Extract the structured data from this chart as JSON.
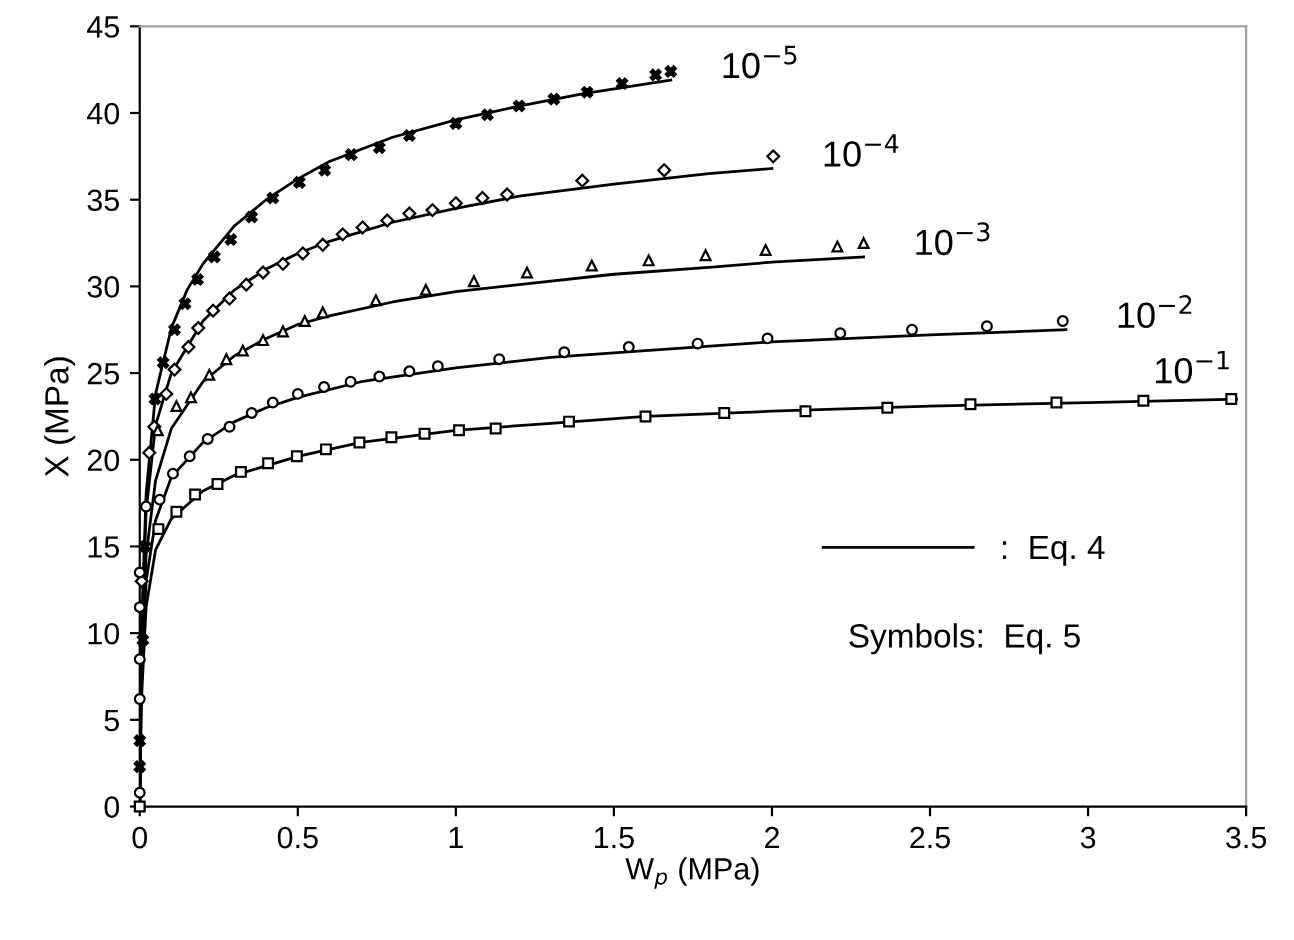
{
  "chart_data": {
    "type": "line",
    "xlabel": "W$_{p}$ (MPa)",
    "ylabel": "X (MPa)",
    "xlim": [
      0,
      3.5
    ],
    "xticks": [
      0,
      0.5,
      1,
      1.5,
      2,
      2.5,
      3,
      3.5
    ],
    "ylim": [
      0,
      45
    ],
    "yticks": [
      0,
      5,
      10,
      15,
      20,
      25,
      30,
      35,
      40,
      45
    ],
    "grid": false,
    "legend": "lower right",
    "annotations": [
      {
        "text": "10$^{−5}$",
        "x": 1.68,
        "y": 41.9
      },
      {
        "text": "10$^{−4}$",
        "x": 2.0,
        "y": 36.8
      },
      {
        "text": "10$^{−3}$",
        "x": 2.29,
        "y": 31.7
      },
      {
        "text": "10$^{−2}$",
        "x": 2.93,
        "y": 27.5
      },
      {
        "text": "10$^{−1}$",
        "x": 3.47,
        "y": 23.5
      },
      "Symbols:  Eq. 5"
    ],
    "series": [
      {
        "type": "line",
        "name": ":  Eq. 4",
        "color": "#000000",
        "marker": "none",
        "line_style": "solid",
        "x": [
          0,
          0.005,
          0.02,
          0.05,
          0.1,
          0.15,
          0.2,
          0.3,
          0.4,
          0.5,
          0.6,
          0.8,
          1.0,
          1.2,
          1.4,
          1.68
        ],
        "values": [
          0,
          10,
          18,
          23.8,
          27.6,
          29.8,
          31.3,
          33.5,
          35,
          36.2,
          37.2,
          38.6,
          39.6,
          40.4,
          41.1,
          41.9
        ]
      },
      {
        "type": "line",
        "color": "#000000",
        "marker": "none",
        "line_style": "solid",
        "x": [
          0,
          0.005,
          0.02,
          0.05,
          0.1,
          0.2,
          0.3,
          0.4,
          0.5,
          0.6,
          0.8,
          1.0,
          1.2,
          1.5,
          1.8,
          2.0
        ],
        "values": [
          0,
          9,
          17,
          22,
          25,
          28,
          29.8,
          31,
          31.9,
          32.6,
          33.7,
          34.5,
          35.2,
          35.9,
          36.5,
          36.8
        ]
      },
      {
        "type": "line",
        "color": "#000000",
        "marker": "none",
        "line_style": "solid",
        "x": [
          0,
          0.005,
          0.02,
          0.05,
          0.1,
          0.2,
          0.3,
          0.4,
          0.5,
          0.6,
          0.8,
          1.0,
          1.2,
          1.5,
          1.8,
          2.0,
          2.29
        ],
        "values": [
          0,
          8,
          14.5,
          18.8,
          21.8,
          24.5,
          26,
          27,
          27.8,
          28.3,
          29.1,
          29.7,
          30.1,
          30.7,
          31.1,
          31.4,
          31.7
        ]
      },
      {
        "type": "line",
        "color": "#000000",
        "marker": "none",
        "line_style": "solid",
        "x": [
          0,
          0.005,
          0.02,
          0.05,
          0.1,
          0.2,
          0.3,
          0.4,
          0.5,
          0.7,
          1.0,
          1.3,
          1.6,
          2.0,
          2.5,
          2.93
        ],
        "values": [
          0,
          7,
          13,
          16.5,
          19,
          21,
          22.2,
          23,
          23.6,
          24.5,
          25.3,
          25.9,
          26.3,
          26.8,
          27.2,
          27.5
        ]
      },
      {
        "type": "line",
        "color": "#000000",
        "marker": "none",
        "line_style": "solid",
        "x": [
          0,
          0.005,
          0.02,
          0.05,
          0.1,
          0.2,
          0.3,
          0.5,
          0.7,
          1.0,
          1.3,
          1.6,
          2.0,
          2.5,
          3.0,
          3.47
        ],
        "values": [
          0,
          6,
          11.5,
          14.8,
          16.6,
          18.2,
          19.1,
          20.2,
          21,
          21.7,
          22.1,
          22.5,
          22.8,
          23.1,
          23.3,
          23.5
        ]
      },
      {
        "type": "scatter",
        "color": "#000000",
        "marker": "cross",
        "x": [
          0,
          0,
          0.01,
          0.017,
          0.048,
          0.074,
          0.11,
          0.143,
          0.183,
          0.236,
          0.288,
          0.354,
          0.421,
          0.505,
          0.585,
          0.669,
          0.758,
          0.853,
          1.0,
          1.1,
          1.2,
          1.31,
          1.415,
          1.526,
          1.632,
          1.68
        ],
        "values": [
          2.3,
          3.8,
          9.6,
          15,
          23.5,
          25.6,
          27.5,
          29,
          30.4,
          31.7,
          32.7,
          34.0,
          35.1,
          36.0,
          36.7,
          37.6,
          38.0,
          38.7,
          39.4,
          39.9,
          40.4,
          40.8,
          41.2,
          41.7,
          42.2,
          42.4
        ]
      },
      {
        "type": "scatter",
        "color": "#000000",
        "marker": "diamond",
        "x": [
          0.006,
          0.03,
          0.046,
          0.084,
          0.11,
          0.154,
          0.185,
          0.232,
          0.284,
          0.337,
          0.39,
          0.453,
          0.516,
          0.579,
          0.642,
          0.705,
          0.783,
          0.853,
          0.926,
          1.0,
          1.084,
          1.162,
          1.4,
          1.659,
          2.004
        ],
        "values": [
          13,
          20.4,
          21.9,
          23.8,
          25.2,
          26.5,
          27.6,
          28.6,
          29.3,
          30.1,
          30.8,
          31.3,
          31.9,
          32.4,
          33.0,
          33.4,
          33.8,
          34.2,
          34.4,
          34.8,
          35.1,
          35.3,
          36.1,
          36.7,
          37.5
        ]
      },
      {
        "type": "scatter",
        "color": "#000000",
        "marker": "triangle",
        "x": [
          0.057,
          0.116,
          0.162,
          0.22,
          0.274,
          0.326,
          0.39,
          0.453,
          0.522,
          0.579,
          0.747,
          0.905,
          1.057,
          1.225,
          1.43,
          1.61,
          1.79,
          1.98,
          2.207,
          2.29
        ],
        "values": [
          21.7,
          23.1,
          23.6,
          24.9,
          25.8,
          26.3,
          26.9,
          27.4,
          28.0,
          28.5,
          29.2,
          29.8,
          30.3,
          30.8,
          31.2,
          31.5,
          31.8,
          32.1,
          32.3,
          32.5
        ]
      },
      {
        "type": "scatter",
        "color": "#000000",
        "marker": "circle",
        "x": [
          0,
          0,
          0,
          0,
          0,
          0.02,
          0.063,
          0.105,
          0.158,
          0.215,
          0.284,
          0.354,
          0.421,
          0.5,
          0.583,
          0.667,
          0.758,
          0.853,
          0.943,
          1.137,
          1.343,
          1.547,
          1.765,
          1.986,
          2.216,
          2.443,
          2.68,
          2.92
        ],
        "values": [
          0.8,
          6.2,
          8.5,
          11.5,
          13.5,
          17.3,
          17.7,
          19.2,
          20.2,
          21.2,
          21.9,
          22.7,
          23.3,
          23.8,
          24.2,
          24.5,
          24.8,
          25.1,
          25.4,
          25.8,
          26.2,
          26.5,
          26.7,
          27.0,
          27.3,
          27.5,
          27.7,
          28.0
        ]
      },
      {
        "type": "scatter",
        "color": "#000000",
        "marker": "square",
        "x": [
          0,
          0.059,
          0.116,
          0.175,
          0.246,
          0.32,
          0.406,
          0.497,
          0.589,
          0.695,
          0.796,
          0.901,
          1.01,
          1.126,
          1.358,
          1.6,
          1.849,
          2.106,
          2.365,
          2.628,
          2.9,
          3.175,
          3.453
        ],
        "values": [
          0,
          16.0,
          17.0,
          18.0,
          18.6,
          19.3,
          19.8,
          20.2,
          20.6,
          21.0,
          21.3,
          21.5,
          21.7,
          21.8,
          22.2,
          22.5,
          22.7,
          22.8,
          23.0,
          23.2,
          23.3,
          23.4,
          23.5
        ]
      }
    ]
  }
}
